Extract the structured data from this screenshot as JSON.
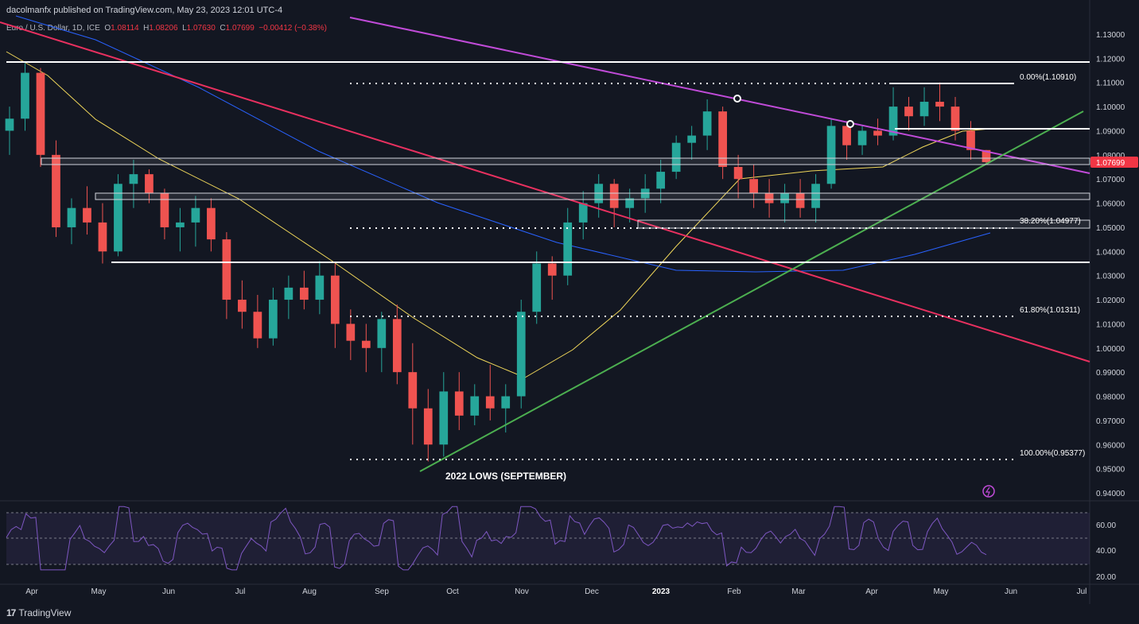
{
  "header": {
    "publisher": "dacolmanfx published on TradingView.com, May 23, 2023 12:01 UTC-4",
    "symbol": "Euro / U.S. Dollar, 1D, ICE",
    "open_label": "O",
    "open": "1.08114",
    "high_label": "H",
    "high": "1.08206",
    "low_label": "L",
    "low": "1.07630",
    "close_label": "C",
    "close": "1.07699",
    "change": "−0.00412 (−0.38%)"
  },
  "footer": {
    "brand": "TradingView",
    "mark": "17"
  },
  "colors": {
    "background": "#131722",
    "up": "#26a69a",
    "down": "#ef5350",
    "sma50": "#f0d75a",
    "sma200": "#2962ff",
    "rsi": "#7e57c2",
    "green_trend": "#4caf50",
    "magenta_trend": "#c04bd8",
    "red_trend": "#e8305f",
    "price_label": "#f23645"
  },
  "chart_data": {
    "type": "candlestick",
    "price_axis": {
      "ticks": [
        "1.13000",
        "1.12000",
        "1.11000",
        "1.10000",
        "1.09000",
        "1.08000",
        "1.07000",
        "1.06000",
        "1.05000",
        "1.04000",
        "1.03000",
        "1.02000",
        "1.01000",
        "1.00000",
        "0.99000",
        "0.98000",
        "0.97000",
        "0.96000",
        "0.95000",
        "0.94000"
      ],
      "range": [
        0.94,
        1.13
      ],
      "last_price_label": "1.07699"
    },
    "time_axis": {
      "labels": [
        "Apr",
        "May",
        "Jun",
        "Jul",
        "Aug",
        "Sep",
        "Oct",
        "Nov",
        "Dec",
        "2023",
        "Feb",
        "Mar",
        "Apr",
        "May",
        "Jun",
        "Jul"
      ]
    },
    "rsi_axis": {
      "ticks": [
        "60.00",
        "40.00",
        "20.00"
      ],
      "levels": [
        70,
        50,
        30
      ]
    },
    "fibonacci": [
      {
        "label": "0.00%(1.10910)",
        "value": 1.1091
      },
      {
        "label": "38.20%(1.04977)",
        "value": 1.04977
      },
      {
        "label": "61.80%(1.01311)",
        "value": 1.01311
      },
      {
        "label": "100.00%(0.95377)",
        "value": 0.95377
      }
    ],
    "horizontal_levels": [
      1.1175,
      1.09,
      1.035
    ],
    "support_zones": [
      {
        "low": 1.076,
        "high": 1.0775
      },
      {
        "low": 1.0615,
        "high": 1.063
      },
      {
        "low": 1.05,
        "high": 1.0515
      }
    ],
    "annotation": "2022 LOWS (SEPTEMBER)",
    "series": [
      {
        "name": "EURUSD daily candles",
        "values": [
          [
            1.09,
            1.1,
            1.08,
            1.095
          ],
          [
            1.095,
            1.118,
            1.09,
            1.114
          ],
          [
            1.114,
            1.116,
            1.075,
            1.08
          ],
          [
            1.08,
            1.086,
            1.046,
            1.05
          ],
          [
            1.05,
            1.062,
            1.043,
            1.058
          ],
          [
            1.058,
            1.067,
            1.047,
            1.052
          ],
          [
            1.052,
            1.06,
            1.035,
            1.04
          ],
          [
            1.04,
            1.072,
            1.038,
            1.068
          ],
          [
            1.068,
            1.078,
            1.058,
            1.072
          ],
          [
            1.072,
            1.074,
            1.06,
            1.064
          ],
          [
            1.064,
            1.066,
            1.045,
            1.05
          ],
          [
            1.05,
            1.058,
            1.04,
            1.052
          ],
          [
            1.052,
            1.063,
            1.042,
            1.058
          ],
          [
            1.058,
            1.062,
            1.04,
            1.045
          ],
          [
            1.045,
            1.048,
            1.012,
            1.02
          ],
          [
            1.02,
            1.028,
            1.008,
            1.015
          ],
          [
            1.015,
            1.022,
            1.0,
            1.004
          ],
          [
            1.004,
            1.025,
            1.001,
            1.02
          ],
          [
            1.02,
            1.03,
            1.012,
            1.025
          ],
          [
            1.025,
            1.032,
            1.016,
            1.02
          ],
          [
            1.02,
            1.036,
            1.014,
            1.03
          ],
          [
            1.03,
            1.035,
            1.0,
            1.01
          ],
          [
            1.01,
            1.016,
            0.995,
            1.003
          ],
          [
            1.003,
            1.01,
            0.99,
            1.0
          ],
          [
            1.0,
            1.015,
            0.99,
            1.012
          ],
          [
            1.012,
            1.018,
            0.985,
            0.99
          ],
          [
            0.99,
            1.002,
            0.96,
            0.975
          ],
          [
            0.975,
            0.983,
            0.953,
            0.96
          ],
          [
            0.96,
            0.99,
            0.955,
            0.982
          ],
          [
            0.982,
            0.99,
            0.966,
            0.972
          ],
          [
            0.972,
            0.985,
            0.968,
            0.98
          ],
          [
            0.98,
            0.993,
            0.97,
            0.975
          ],
          [
            0.975,
            0.985,
            0.965,
            0.98
          ],
          [
            0.98,
            1.02,
            0.975,
            1.015
          ],
          [
            1.015,
            1.04,
            1.01,
            1.035
          ],
          [
            1.035,
            1.038,
            1.02,
            1.03
          ],
          [
            1.03,
            1.058,
            1.026,
            1.052
          ],
          [
            1.052,
            1.065,
            1.045,
            1.06
          ],
          [
            1.06,
            1.072,
            1.054,
            1.068
          ],
          [
            1.068,
            1.07,
            1.05,
            1.058
          ],
          [
            1.058,
            1.066,
            1.052,
            1.062
          ],
          [
            1.062,
            1.072,
            1.056,
            1.066
          ],
          [
            1.066,
            1.078,
            1.06,
            1.073
          ],
          [
            1.073,
            1.088,
            1.07,
            1.085
          ],
          [
            1.085,
            1.092,
            1.078,
            1.088
          ],
          [
            1.088,
            1.103,
            1.082,
            1.098
          ],
          [
            1.098,
            1.1,
            1.07,
            1.075
          ],
          [
            1.075,
            1.08,
            1.062,
            1.07
          ],
          [
            1.07,
            1.076,
            1.058,
            1.064
          ],
          [
            1.064,
            1.07,
            1.054,
            1.06
          ],
          [
            1.06,
            1.068,
            1.052,
            1.064
          ],
          [
            1.064,
            1.07,
            1.054,
            1.058
          ],
          [
            1.058,
            1.072,
            1.052,
            1.068
          ],
          [
            1.068,
            1.095,
            1.066,
            1.092
          ],
          [
            1.092,
            1.094,
            1.078,
            1.084
          ],
          [
            1.084,
            1.092,
            1.08,
            1.09
          ],
          [
            1.09,
            1.095,
            1.084,
            1.088
          ],
          [
            1.088,
            1.108,
            1.086,
            1.1
          ],
          [
            1.1,
            1.104,
            1.09,
            1.096
          ],
          [
            1.096,
            1.108,
            1.092,
            1.102
          ],
          [
            1.102,
            1.11,
            1.094,
            1.1
          ],
          [
            1.1,
            1.104,
            1.086,
            1.09
          ],
          [
            1.09,
            1.094,
            1.078,
            1.082
          ],
          [
            1.082,
            1.082,
            1.076,
            1.077
          ]
        ]
      }
    ]
  }
}
